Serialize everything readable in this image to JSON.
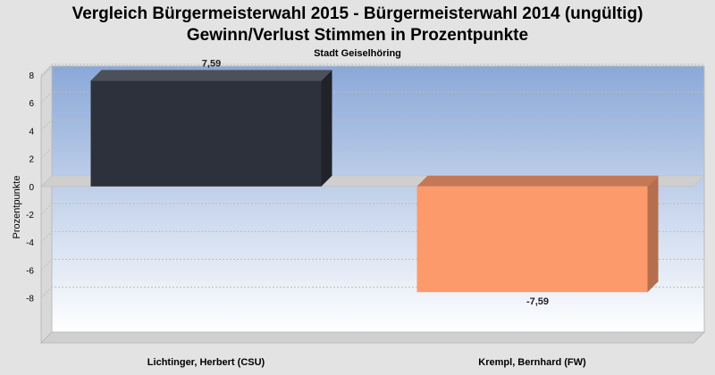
{
  "chart_data": {
    "type": "bar",
    "title": "Vergleich Bürgermeisterwahl 2015 - Bürgermeisterwahl 2014 (ungültig)",
    "subtitle": "Gewinn/Verlust Stimmen in Prozentpunkte",
    "caption": "Stadt Geiselhöring",
    "ylabel": "Prozentpunkte",
    "categories": [
      "Lichtinger, Herbert (CSU)",
      "Krempl, Bernhard (FW)"
    ],
    "values": [
      7.59,
      -7.59
    ],
    "value_labels": [
      "7,59",
      "-7,59"
    ],
    "ylim": [
      -9.5,
      9.5
    ],
    "yticks": [
      -8,
      -6,
      -4,
      -2,
      0,
      2,
      4,
      6,
      8
    ],
    "grid": true,
    "colors": [
      "#2c313b",
      "#fc9a6c"
    ]
  }
}
